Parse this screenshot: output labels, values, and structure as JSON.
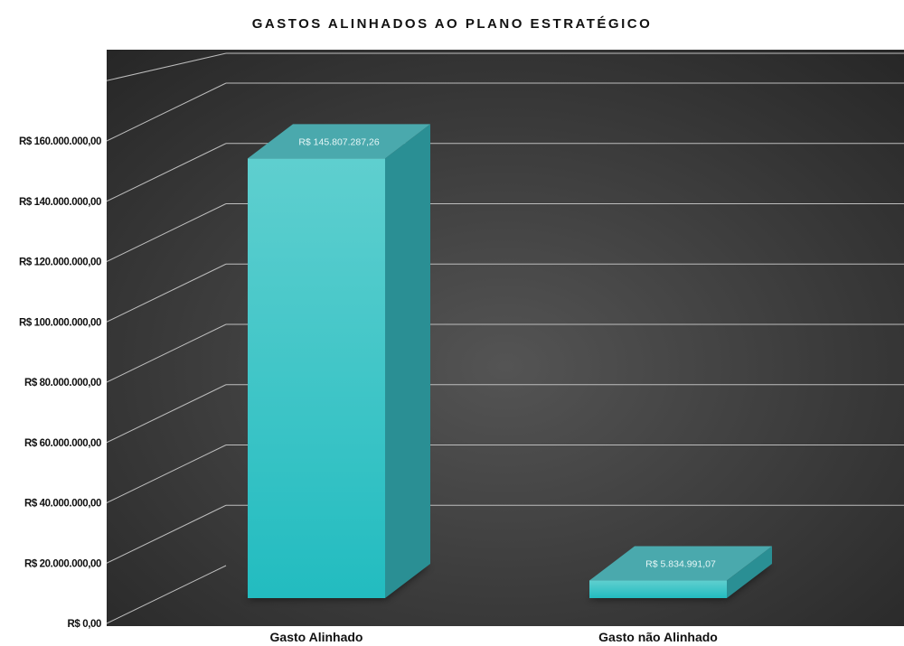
{
  "chart_data": {
    "type": "bar",
    "title": "GASTOS ALINHADOS AO PLANO ESTRATÉGICO",
    "categories": [
      "Gasto Alinhado",
      "Gasto não Alinhado"
    ],
    "values": [
      145807287.26,
      5834991.07
    ],
    "data_labels": [
      "R$ 145.807.287,26",
      "R$ 5.834.991,07"
    ],
    "ylim": [
      0,
      160000000
    ],
    "y_ticks": [
      0,
      20000000,
      40000000,
      60000000,
      80000000,
      100000000,
      120000000,
      140000000,
      160000000
    ],
    "y_tick_labels": [
      "R$ 0,00",
      "R$ 20.000.000,00",
      "R$ 40.000.000,00",
      "R$ 60.000.000,00",
      "R$ 80.000.000,00",
      "R$ 100.000.000,00",
      "R$ 120.000.000,00",
      "R$ 140.000.000,00",
      "R$ 160.000.000,00"
    ],
    "xlabel": "",
    "ylabel": "",
    "grid": true,
    "style": "3d-column",
    "colors": {
      "bar_front_top": "#5fcfcf",
      "bar_front_bottom": "#22bcc0",
      "bar_side": "#2a8f94",
      "bar_top": "#4aa9ad",
      "background": "#3a3a3a",
      "grid": "#bdbdbd"
    }
  }
}
